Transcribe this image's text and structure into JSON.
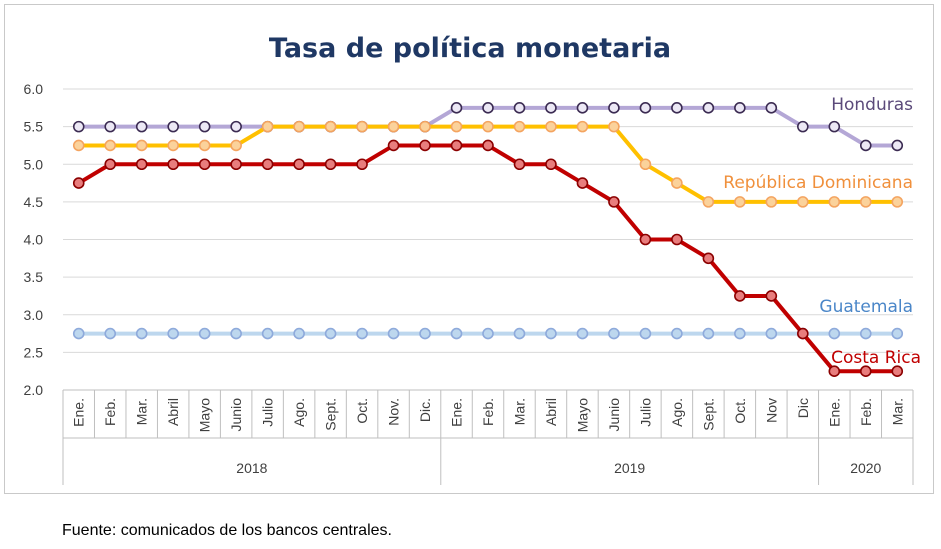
{
  "source_note": "Fuente: comunicados de los bancos centrales.",
  "chart_data": {
    "type": "line",
    "title": "Tasa de política monetaria",
    "xlabel": "",
    "ylabel": "",
    "ylim": [
      2.0,
      6.0
    ],
    "yticks": [
      "6.0",
      "5.5",
      "5.0",
      "4.5",
      "4.0",
      "3.5",
      "3.0",
      "2.5",
      "2.0"
    ],
    "grid": true,
    "categories": [
      "Ene.",
      "Feb.",
      "Mar.",
      "Abril",
      "Mayo",
      "Junio",
      "Julio",
      "Ago.",
      "Sept.",
      "Oct.",
      "Nov.",
      "Dic.",
      "Ene.",
      "Feb.",
      "Mar.",
      "Abril",
      "Mayo",
      "Junio",
      "Julio",
      "Ago.",
      "Sept.",
      "Oct.",
      "Nov",
      "Dic",
      "Ene.",
      "Feb.",
      "Mar."
    ],
    "year_groups": [
      {
        "label": "2018",
        "start": 0,
        "end": 11
      },
      {
        "label": "2019",
        "start": 12,
        "end": 23
      },
      {
        "label": "2020",
        "start": 24,
        "end": 26
      }
    ],
    "series": [
      {
        "name": "Guatemala",
        "line_color": "#bdd7ee",
        "marker_fill": "#bdd7ee",
        "marker_stroke": "#8eaadb",
        "label_color": "#4a86c8",
        "values": [
          2.75,
          2.75,
          2.75,
          2.75,
          2.75,
          2.75,
          2.75,
          2.75,
          2.75,
          2.75,
          2.75,
          2.75,
          2.75,
          2.75,
          2.75,
          2.75,
          2.75,
          2.75,
          2.75,
          2.75,
          2.75,
          2.75,
          2.75,
          2.75,
          2.75,
          2.75,
          2.75
        ]
      },
      {
        "name": "Honduras",
        "line_color": "#b4a7d6",
        "marker_fill": "#ece8f5",
        "marker_stroke": "#3b2b52",
        "label_color": "#5b4a7a",
        "values": [
          5.5,
          5.5,
          5.5,
          5.5,
          5.5,
          5.5,
          5.5,
          5.5,
          5.5,
          5.5,
          5.5,
          5.5,
          5.75,
          5.75,
          5.75,
          5.75,
          5.75,
          5.75,
          5.75,
          5.75,
          5.75,
          5.75,
          5.75,
          5.5,
          5.5,
          5.25,
          5.25
        ]
      },
      {
        "name": "República Dominicana",
        "line_color": "#ffc000",
        "marker_fill": "#fbd29b",
        "marker_stroke": "#f4a460",
        "label_color": "#f0903c",
        "values": [
          5.25,
          5.25,
          5.25,
          5.25,
          5.25,
          5.25,
          5.5,
          5.5,
          5.5,
          5.5,
          5.5,
          5.5,
          5.5,
          5.5,
          5.5,
          5.5,
          5.5,
          5.5,
          5.0,
          4.75,
          4.5,
          4.5,
          4.5,
          4.5,
          4.5,
          4.5,
          4.5
        ]
      },
      {
        "name": "Costa Rica",
        "line_color": "#c00000",
        "marker_fill": "#e87d7d",
        "marker_stroke": "#8b0000",
        "label_color": "#c00000",
        "values": [
          4.75,
          5.0,
          5.0,
          5.0,
          5.0,
          5.0,
          5.0,
          5.0,
          5.0,
          5.0,
          5.25,
          5.25,
          5.25,
          5.25,
          5.0,
          5.0,
          4.75,
          4.5,
          4.0,
          4.0,
          3.75,
          3.25,
          3.25,
          2.75,
          2.25,
          2.25,
          2.25
        ]
      }
    ]
  }
}
